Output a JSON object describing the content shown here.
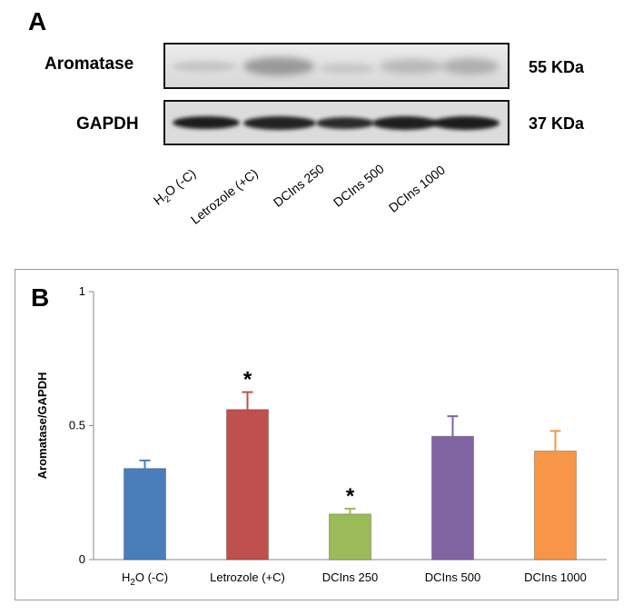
{
  "panel_a": {
    "letter": "A",
    "rows": [
      {
        "label": "Aromatase",
        "kda": "55 KDa"
      },
      {
        "label": "GAPDH",
        "kda": "37 KDa"
      }
    ],
    "lanes": [
      {
        "pre": "H",
        "sub": "2",
        "post": "O (-C)"
      },
      {
        "pre": "Letrozole (+C)",
        "sub": "",
        "post": ""
      },
      {
        "pre": "DCIns 250",
        "sub": "",
        "post": ""
      },
      {
        "pre": "DCIns 500",
        "sub": "",
        "post": ""
      },
      {
        "pre": "DCIns 1000",
        "sub": "",
        "post": ""
      }
    ]
  },
  "panel_b": {
    "letter": "B"
  },
  "chart_data": {
    "type": "bar",
    "categories": [
      {
        "pre": "H",
        "sub": "2",
        "post": "O (-C)"
      },
      {
        "pre": "Letrozole (+C)",
        "sub": "",
        "post": ""
      },
      {
        "pre": "DCIns 250",
        "sub": "",
        "post": ""
      },
      {
        "pre": "DCIns 500",
        "sub": "",
        "post": ""
      },
      {
        "pre": "DCIns 1000",
        "sub": "",
        "post": ""
      }
    ],
    "values": [
      0.34,
      0.56,
      0.17,
      0.46,
      0.405
    ],
    "errors": [
      0.03,
      0.065,
      0.02,
      0.075,
      0.075
    ],
    "significance": [
      "",
      "*",
      "*",
      "",
      ""
    ],
    "colors": [
      "#4a7ebb",
      "#c0504d",
      "#9bbb59",
      "#8064a2",
      "#f79646"
    ],
    "ylabel": "Aromatase/GAPDH",
    "ylim": [
      0,
      1
    ],
    "yticks": [
      0,
      0.5,
      1
    ],
    "ytick_labels": [
      "0",
      "0.5",
      "1"
    ],
    "grid": false,
    "legend": "none"
  }
}
